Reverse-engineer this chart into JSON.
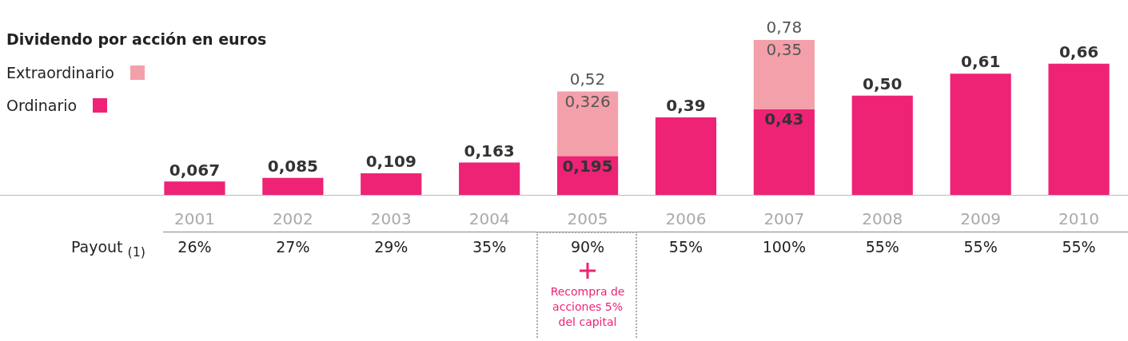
{
  "chart_data": {
    "type": "bar",
    "title": "Dividendo por acción en euros",
    "stacked": true,
    "legend": "left",
    "categories": [
      "2001",
      "2002",
      "2003",
      "2004",
      "2005",
      "2006",
      "2007",
      "2008",
      "2009",
      "2010"
    ],
    "series": [
      {
        "name": "Ordinario",
        "color": "#ee2375",
        "values": [
          0.067,
          0.085,
          0.109,
          0.163,
          0.195,
          0.39,
          0.43,
          0.5,
          0.61,
          0.66
        ],
        "value_labels": [
          "0,067",
          "0,085",
          "0,109",
          "0,163",
          "0,195",
          "0,39",
          "0,43",
          "0,50",
          "0,61",
          "0,66"
        ]
      },
      {
        "name": "Extraordinario",
        "color": "#f4a0aa",
        "values": [
          null,
          null,
          null,
          null,
          0.326,
          null,
          0.35,
          null,
          null,
          null
        ],
        "value_labels": [
          null,
          null,
          null,
          null,
          "0,326",
          null,
          "0,35",
          null,
          null,
          null
        ]
      }
    ],
    "totals": [
      null,
      null,
      null,
      null,
      "0,52",
      null,
      "0,78",
      null,
      null,
      null
    ],
    "annotations": [
      "Payout $_{(1)}$",
      "26%",
      "27%",
      "29%",
      "35%",
      "90%",
      "55%",
      "100%",
      "55%",
      "55%",
      "55%",
      "Recompra de acciones 5% del capital"
    ]
  }
}
